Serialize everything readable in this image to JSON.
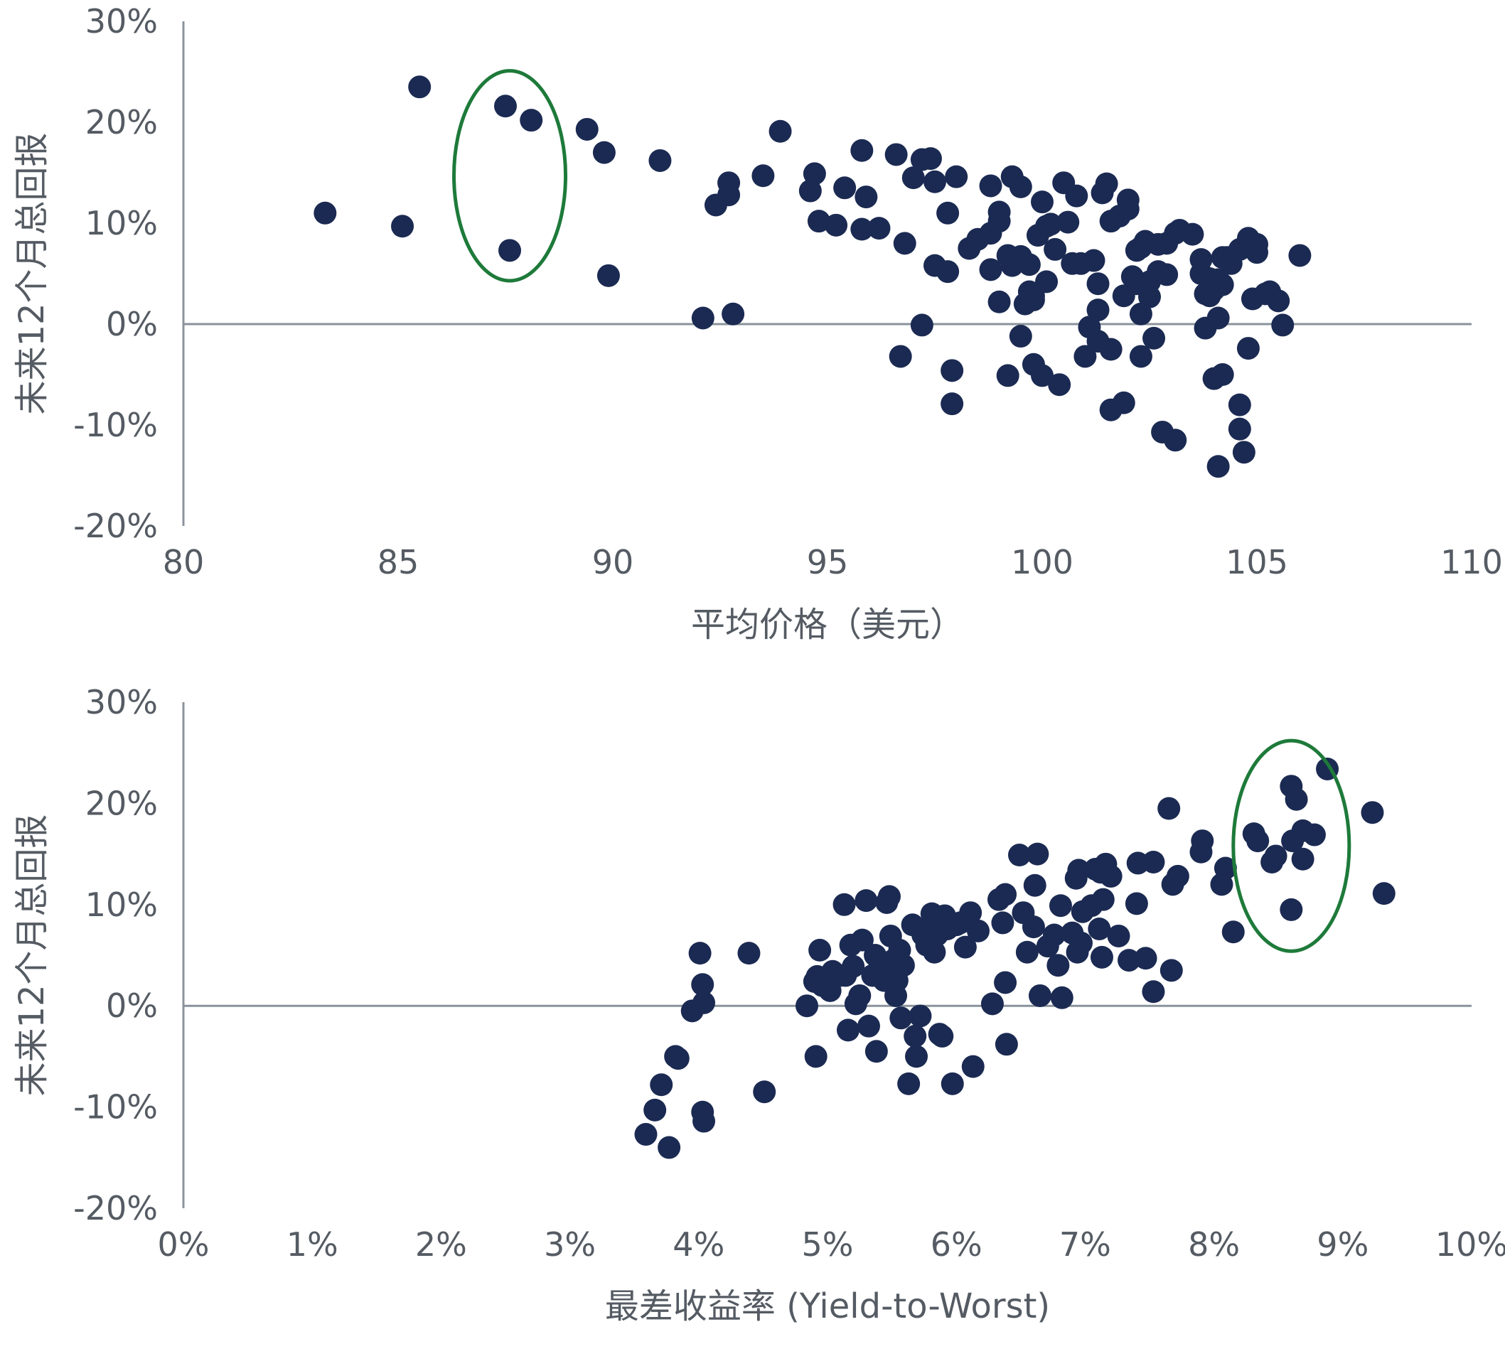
{
  "colors": {
    "point": "#1b2a52",
    "highlight": "#1e7a3a",
    "axis": "#8a939b",
    "text": "#555b63"
  },
  "chart_data": [
    {
      "type": "scatter",
      "title": "",
      "xlabel": "平均价格（美元）",
      "ylabel": "未来12个月总回报",
      "xlim": [
        80,
        110
      ],
      "ylim": [
        -0.2,
        0.3
      ],
      "xticks": [
        "80",
        "85",
        "90",
        "95",
        "100",
        "105",
        "110"
      ],
      "yticks": [
        "30%",
        "20%",
        "10%",
        "0%",
        "-10%",
        "-20%"
      ],
      "grid": false,
      "highlight_ellipse": {
        "cx": 87.6,
        "cy": 0.147,
        "rx": 1.3,
        "ry": 0.104
      },
      "points": [
        [
          83.3,
          0.11
        ],
        [
          85.1,
          0.097
        ],
        [
          85.5,
          0.235
        ],
        [
          87.5,
          0.216
        ],
        [
          88.1,
          0.202
        ],
        [
          87.6,
          0.073
        ],
        [
          89.4,
          0.193
        ],
        [
          89.8,
          0.17
        ],
        [
          89.9,
          0.048
        ],
        [
          91.1,
          0.162
        ],
        [
          92.1,
          0.006
        ],
        [
          92.4,
          0.118
        ],
        [
          92.7,
          0.128
        ],
        [
          92.7,
          0.14
        ],
        [
          92.8,
          0.01
        ],
        [
          93.5,
          0.147
        ],
        [
          93.9,
          0.191
        ],
        [
          94.6,
          0.132
        ],
        [
          94.7,
          0.149
        ],
        [
          94.8,
          0.102
        ],
        [
          95.2,
          0.098
        ],
        [
          95.4,
          0.135
        ],
        [
          95.8,
          0.172
        ],
        [
          95.8,
          0.094
        ],
        [
          95.9,
          0.126
        ],
        [
          96.2,
          0.095
        ],
        [
          96.6,
          0.168
        ],
        [
          96.8,
          0.08
        ],
        [
          96.7,
          -0.032
        ],
        [
          97.0,
          0.145
        ],
        [
          97.2,
          0.163
        ],
        [
          97.4,
          0.164
        ],
        [
          97.5,
          0.058
        ],
        [
          97.5,
          0.141
        ],
        [
          97.2,
          -0.001
        ],
        [
          97.8,
          0.11
        ],
        [
          97.8,
          0.052
        ],
        [
          98.0,
          0.146
        ],
        [
          97.9,
          -0.046
        ],
        [
          97.9,
          -0.079
        ],
        [
          98.3,
          0.075
        ],
        [
          98.5,
          0.084
        ],
        [
          98.8,
          0.137
        ],
        [
          98.8,
          0.09
        ],
        [
          98.8,
          0.054
        ],
        [
          99.0,
          0.111
        ],
        [
          99.0,
          0.102
        ],
        [
          99.0,
          0.022
        ],
        [
          99.2,
          0.068
        ],
        [
          99.3,
          0.146
        ],
        [
          99.3,
          0.058
        ],
        [
          99.2,
          -0.051
        ],
        [
          99.5,
          0.136
        ],
        [
          99.5,
          0.067
        ],
        [
          99.6,
          0.02
        ],
        [
          99.5,
          -0.012
        ],
        [
          99.7,
          0.032
        ],
        [
          99.7,
          0.059
        ],
        [
          99.8,
          0.024
        ],
        [
          99.8,
          0.028
        ],
        [
          99.9,
          0.088
        ],
        [
          99.8,
          -0.04
        ],
        [
          100.0,
          0.121
        ],
        [
          100.0,
          -0.051
        ],
        [
          100.1,
          0.097
        ],
        [
          100.1,
          0.042
        ],
        [
          100.2,
          0.099
        ],
        [
          100.3,
          0.074
        ],
        [
          100.4,
          -0.06
        ],
        [
          100.5,
          0.14
        ],
        [
          100.6,
          0.101
        ],
        [
          100.7,
          0.06
        ],
        [
          100.8,
          0.127
        ],
        [
          100.9,
          0.06
        ],
        [
          101.0,
          -0.032
        ],
        [
          101.2,
          0.063
        ],
        [
          101.1,
          -0.003
        ],
        [
          101.3,
          0.04
        ],
        [
          101.3,
          0.014
        ],
        [
          101.3,
          -0.017
        ],
        [
          101.4,
          0.13
        ],
        [
          101.5,
          0.139
        ],
        [
          101.6,
          0.102
        ],
        [
          101.6,
          -0.025
        ],
        [
          101.6,
          -0.085
        ],
        [
          101.8,
          0.107
        ],
        [
          101.9,
          0.028
        ],
        [
          101.9,
          -0.078
        ],
        [
          102.0,
          0.123
        ],
        [
          102.0,
          0.114
        ],
        [
          102.1,
          0.047
        ],
        [
          102.2,
          0.073
        ],
        [
          102.2,
          0.04
        ],
        [
          102.3,
          0.076
        ],
        [
          102.4,
          0.082
        ],
        [
          102.3,
          0.01
        ],
        [
          102.3,
          -0.032
        ],
        [
          102.5,
          0.042
        ],
        [
          102.5,
          0.027
        ],
        [
          102.7,
          0.079
        ],
        [
          102.7,
          0.052
        ],
        [
          102.6,
          -0.014
        ],
        [
          102.8,
          -0.107
        ],
        [
          102.9,
          0.08
        ],
        [
          102.9,
          0.049
        ],
        [
          103.1,
          0.09
        ],
        [
          103.2,
          0.093
        ],
        [
          103.1,
          -0.115
        ],
        [
          103.5,
          0.089
        ],
        [
          103.7,
          0.064
        ],
        [
          103.7,
          0.05
        ],
        [
          103.8,
          0.03
        ],
        [
          103.8,
          -0.004
        ],
        [
          103.9,
          0.045
        ],
        [
          103.9,
          0.028
        ],
        [
          104.0,
          0.034
        ],
        [
          104.0,
          -0.054
        ],
        [
          104.1,
          0.006
        ],
        [
          104.2,
          0.066
        ],
        [
          104.1,
          0.044
        ],
        [
          104.1,
          -0.141
        ],
        [
          104.2,
          0.039
        ],
        [
          104.2,
          -0.05
        ],
        [
          104.3,
          0.066
        ],
        [
          104.4,
          0.06
        ],
        [
          104.6,
          0.074
        ],
        [
          104.6,
          -0.08
        ],
        [
          104.6,
          -0.104
        ],
        [
          104.7,
          -0.127
        ],
        [
          104.8,
          0.085
        ],
        [
          104.8,
          -0.024
        ],
        [
          104.9,
          0.025
        ],
        [
          105.0,
          0.079
        ],
        [
          105.0,
          0.071
        ],
        [
          105.2,
          0.03
        ],
        [
          105.3,
          0.032
        ],
        [
          105.5,
          0.023
        ],
        [
          105.6,
          -0.001
        ],
        [
          106.0,
          0.068
        ]
      ]
    },
    {
      "type": "scatter",
      "title": "",
      "xlabel": "最差收益率 (Yield-to-Worst)",
      "ylabel": "未来12个月总回报",
      "xlim": [
        0,
        0.1
      ],
      "ylim": [
        -0.2,
        0.3
      ],
      "xticks": [
        "0%",
        "1%",
        "2%",
        "3%",
        "4%",
        "5%",
        "6%",
        "7%",
        "8%",
        "9%",
        "10%"
      ],
      "yticks": [
        "30%",
        "20%",
        "10%",
        "0%",
        "-10%",
        "-20%"
      ],
      "grid": false,
      "highlight_ellipse": {
        "cx": 0.086,
        "cy": 0.158,
        "rx": 0.0045,
        "ry": 0.104
      },
      "points": [
        [
          0.0359,
          -0.127
        ],
        [
          0.0366,
          -0.103
        ],
        [
          0.0371,
          -0.078
        ],
        [
          0.0377,
          -0.14
        ],
        [
          0.0382,
          -0.05
        ],
        [
          0.0384,
          -0.052
        ],
        [
          0.0395,
          -0.005
        ],
        [
          0.0401,
          0.052
        ],
        [
          0.0403,
          0.021
        ],
        [
          0.0403,
          -0.105
        ],
        [
          0.0404,
          0.003
        ],
        [
          0.0404,
          -0.114
        ],
        [
          0.0439,
          0.052
        ],
        [
          0.0451,
          -0.085
        ],
        [
          0.0484,
          0.0
        ],
        [
          0.049,
          0.024
        ],
        [
          0.0492,
          0.029
        ],
        [
          0.0491,
          -0.05
        ],
        [
          0.0494,
          0.055
        ],
        [
          0.0496,
          0.02
        ],
        [
          0.05,
          0.025
        ],
        [
          0.0502,
          0.015
        ],
        [
          0.0504,
          0.034
        ],
        [
          0.051,
          0.03
        ],
        [
          0.0513,
          0.1
        ],
        [
          0.0514,
          0.03
        ],
        [
          0.0516,
          -0.024
        ],
        [
          0.0518,
          0.06
        ],
        [
          0.052,
          0.039
        ],
        [
          0.0522,
          0.002
        ],
        [
          0.0525,
          0.01
        ],
        [
          0.0527,
          0.065
        ],
        [
          0.053,
          0.104
        ],
        [
          0.0532,
          -0.02
        ],
        [
          0.0535,
          0.03
        ],
        [
          0.0537,
          0.05
        ],
        [
          0.0538,
          -0.045
        ],
        [
          0.054,
          0.036
        ],
        [
          0.0542,
          0.03
        ],
        [
          0.0544,
          0.025
        ],
        [
          0.0546,
          0.102
        ],
        [
          0.0548,
          0.108
        ],
        [
          0.0549,
          0.069
        ],
        [
          0.0551,
          0.045
        ],
        [
          0.0553,
          0.01
        ],
        [
          0.0554,
          0.025
        ],
        [
          0.0556,
          0.055
        ],
        [
          0.0557,
          -0.012
        ],
        [
          0.0559,
          0.04
        ],
        [
          0.0563,
          -0.077
        ],
        [
          0.0566,
          0.08
        ],
        [
          0.0568,
          -0.03
        ],
        [
          0.0569,
          -0.05
        ],
        [
          0.0572,
          -0.01
        ],
        [
          0.0574,
          0.07
        ],
        [
          0.0577,
          0.06
        ],
        [
          0.0579,
          0.078
        ],
        [
          0.0581,
          0.091
        ],
        [
          0.0583,
          0.053
        ],
        [
          0.0585,
          0.07
        ],
        [
          0.0587,
          -0.028
        ],
        [
          0.0589,
          -0.03
        ],
        [
          0.0591,
          0.089
        ],
        [
          0.0593,
          0.076
        ],
        [
          0.0597,
          -0.077
        ],
        [
          0.06,
          0.08
        ],
        [
          0.0603,
          0.082
        ],
        [
          0.0607,
          0.058
        ],
        [
          0.0611,
          0.092
        ],
        [
          0.0613,
          -0.06
        ],
        [
          0.0617,
          0.074
        ],
        [
          0.0628,
          0.002
        ],
        [
          0.0633,
          0.105
        ],
        [
          0.0636,
          0.082
        ],
        [
          0.0638,
          0.11
        ],
        [
          0.0638,
          0.023
        ],
        [
          0.0639,
          -0.038
        ],
        [
          0.0649,
          0.149
        ],
        [
          0.0652,
          0.092
        ],
        [
          0.0655,
          0.053
        ],
        [
          0.066,
          0.078
        ],
        [
          0.0661,
          0.119
        ],
        [
          0.0663,
          0.15
        ],
        [
          0.0665,
          0.01
        ],
        [
          0.0671,
          0.059
        ],
        [
          0.0676,
          0.07
        ],
        [
          0.0679,
          0.04
        ],
        [
          0.0681,
          0.099
        ],
        [
          0.0682,
          0.008
        ],
        [
          0.069,
          0.072
        ],
        [
          0.0693,
          0.126
        ],
        [
          0.0694,
          0.053
        ],
        [
          0.0695,
          0.134
        ],
        [
          0.0697,
          0.062
        ],
        [
          0.0698,
          0.093
        ],
        [
          0.0705,
          0.099
        ],
        [
          0.0708,
          0.135
        ],
        [
          0.0711,
          0.076
        ],
        [
          0.0712,
          0.132
        ],
        [
          0.0713,
          0.048
        ],
        [
          0.0714,
          0.105
        ],
        [
          0.0716,
          0.14
        ],
        [
          0.072,
          0.128
        ],
        [
          0.0726,
          0.069
        ],
        [
          0.0734,
          0.045
        ],
        [
          0.074,
          0.101
        ],
        [
          0.0741,
          0.141
        ],
        [
          0.0747,
          0.047
        ],
        [
          0.0753,
          0.142
        ],
        [
          0.0753,
          0.014
        ],
        [
          0.0765,
          0.195
        ],
        [
          0.0767,
          0.035
        ],
        [
          0.0768,
          0.12
        ],
        [
          0.0772,
          0.128
        ],
        [
          0.079,
          0.152
        ],
        [
          0.0791,
          0.163
        ],
        [
          0.0806,
          0.12
        ],
        [
          0.0809,
          0.136
        ],
        [
          0.0815,
          0.073
        ],
        [
          0.0831,
          0.17
        ],
        [
          0.0834,
          0.163
        ],
        [
          0.0845,
          0.142
        ],
        [
          0.0848,
          0.148
        ],
        [
          0.086,
          0.095
        ],
        [
          0.086,
          0.217
        ],
        [
          0.0861,
          0.163
        ],
        [
          0.0864,
          0.204
        ],
        [
          0.0869,
          0.145
        ],
        [
          0.0869,
          0.173
        ],
        [
          0.0878,
          0.169
        ],
        [
          0.0888,
          0.234
        ],
        [
          0.0923,
          0.191
        ],
        [
          0.0932,
          0.111
        ]
      ]
    }
  ]
}
